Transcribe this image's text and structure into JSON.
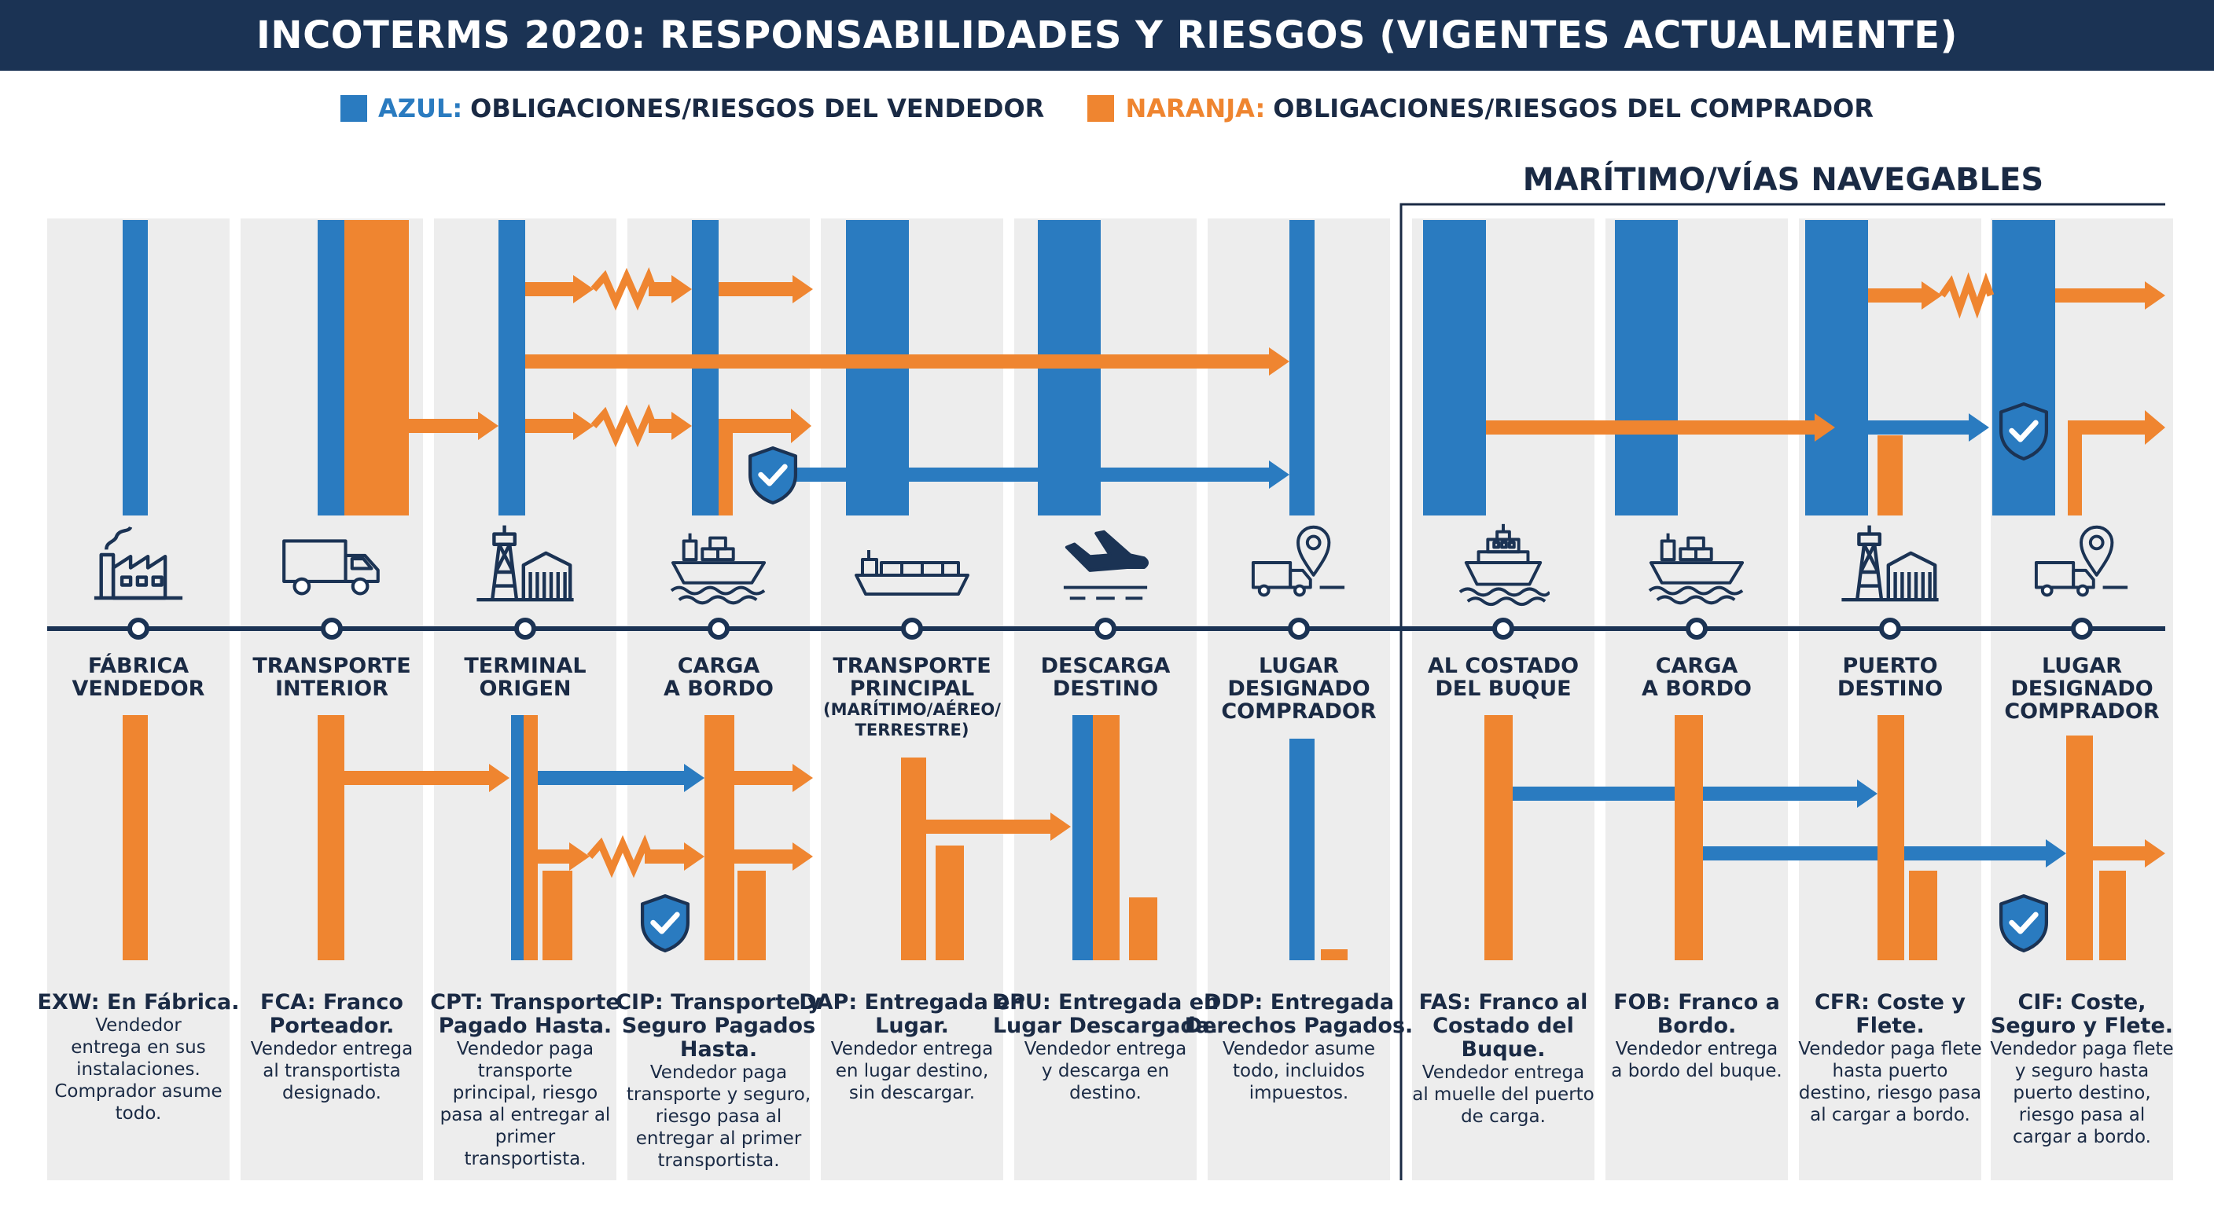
{
  "title": "INCOTERMS 2020: RESPONSABILIDADES Y RIESGOS (VIGENTES ACTUALMENTE)",
  "legend": {
    "blue_label": "AZUL:",
    "blue_text": "OBLIGACIONES/RIESGOS DEL VENDEDOR",
    "orange_label": "NARANJA:",
    "orange_text": "OBLIGACIONES/RIESGOS DEL COMPRADOR"
  },
  "maritime_header": "MARÍTIMO/VÍAS NAVEGABLES",
  "colors": {
    "seller": "#2a7bc0",
    "buyer": "#ef8530",
    "navy": "#1b3354",
    "panel": "#ededed"
  },
  "columns": [
    {
      "icon": "factory-icon",
      "stage": [
        "FÁBRICA",
        "VENDEDOR"
      ],
      "term": "EXW: En Fábrica.",
      "desc": [
        "Vendedor",
        "entrega en sus",
        "instalaciones.",
        "Comprador asume",
        "todo."
      ]
    },
    {
      "icon": "truck-icon",
      "stage": [
        "TRANSPORTE",
        "INTERIOR"
      ],
      "term": "FCA: Franco Porteador.",
      "desc": [
        "Vendedor entrega",
        "al transportista",
        "designado."
      ]
    },
    {
      "icon": "port-terminal-icon",
      "stage": [
        "TERMINAL",
        "ORIGEN"
      ],
      "term": "CPT: Transporte Pagado Hasta.",
      "desc": [
        "Vendedor paga",
        "transporte",
        "principal, riesgo",
        "pasa al entregar al",
        "primer",
        "transportista."
      ]
    },
    {
      "icon": "cargo-ship-icon",
      "stage": [
        "CARGA",
        "A BORDO"
      ],
      "term": "CIP: Transporte y Seguro Pagados Hasta.",
      "desc": [
        "Vendedor paga",
        "transporte y seguro,",
        "riesgo pasa al",
        "entregar al primer",
        "transportista."
      ]
    },
    {
      "icon": "container-ship-icon",
      "stage": [
        "TRANSPORTE",
        "PRINCIPAL"
      ],
      "stage_sub": [
        "(MARÍTIMO/AÉREO/",
        "TERRESTRE)"
      ],
      "term": "DAP: Entregada en Lugar.",
      "desc": [
        "Vendedor entrega",
        "en lugar destino,",
        "sin descargar."
      ]
    },
    {
      "icon": "plane-landing-icon",
      "stage": [
        "DESCARGA",
        "DESTINO"
      ],
      "term": "DPU: Entregada en Lugar Descargada.",
      "desc": [
        "Vendedor entrega",
        "y descarga en",
        "destino."
      ]
    },
    {
      "icon": "truck-location-icon",
      "stage": [
        "LUGAR",
        "DESIGNADO",
        "COMPRADOR"
      ],
      "term": "DDP: Entregada Derechos Pagados.",
      "desc": [
        "Vendedor asume",
        "todo, incluidos",
        "impuestos."
      ]
    },
    {
      "icon": "ship-quay-icon",
      "stage": [
        "AL COSTADO",
        "DEL BUQUE"
      ],
      "term": "FAS: Franco al Costado del Buque.",
      "desc": [
        "Vendedor entrega",
        "al muelle del puerto",
        "de carga."
      ]
    },
    {
      "icon": "cargo-ship-icon",
      "stage": [
        "CARGA",
        "A BORDO"
      ],
      "term": "FOB: Franco a Bordo.",
      "desc": [
        "Vendedor entrega",
        "a bordo del buque."
      ]
    },
    {
      "icon": "port-terminal-icon",
      "stage": [
        "PUERTO",
        "DESTINO"
      ],
      "term": "CFR: Coste y Flete.",
      "desc": [
        "Vendedor paga flete",
        "hasta puerto",
        "destino, riesgo pasa",
        "al cargar a bordo."
      ]
    },
    {
      "icon": "truck-location-icon",
      "stage": [
        "LUGAR",
        "DESIGNADO",
        "COMPRADOR"
      ],
      "term": "CIF: Coste, Seguro y Flete.",
      "desc": [
        "Vendedor paga flete",
        "y seguro hasta",
        "puerto destino,",
        "riesgo pasa al",
        "cargar a bordo."
      ]
    }
  ]
}
